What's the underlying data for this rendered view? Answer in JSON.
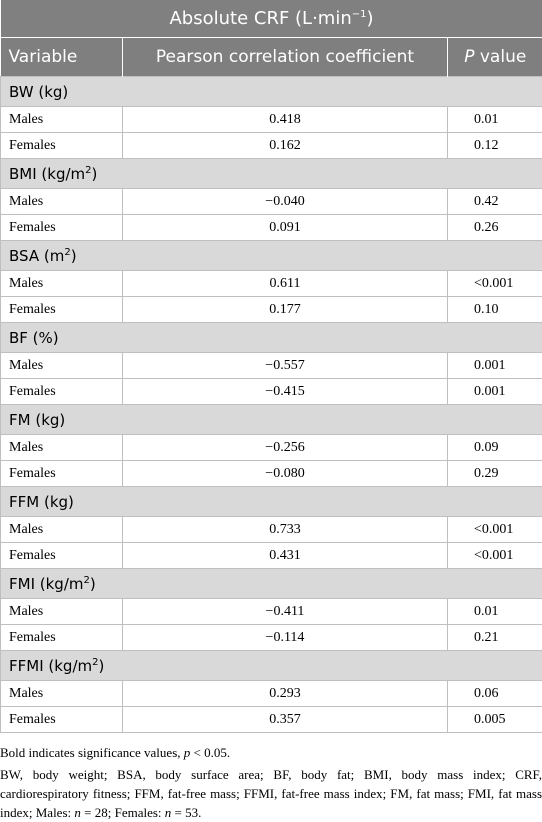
{
  "table": {
    "title": {
      "text": "Absolute CRF (L·min",
      "sup": "−1",
      "tail": ")"
    },
    "headers": [
      {
        "text": "Variable"
      },
      {
        "text": "Pearson correlation coefficient"
      },
      {
        "italic": "P",
        "text": " value"
      }
    ],
    "groups": [
      {
        "label": "BW (kg)",
        "rows": [
          {
            "variable": "Males",
            "r": "0.418",
            "p": "0.01",
            "bold": true
          },
          {
            "variable": "Females",
            "r": "0.162",
            "p": "0.12",
            "bold": false
          }
        ]
      },
      {
        "label": "BMI (kg/m",
        "sup": "2",
        "tail": ")",
        "rows": [
          {
            "variable": "Males",
            "r": "−0.040",
            "p": "0.42",
            "bold": false
          },
          {
            "variable": "Females",
            "r": "0.091",
            "p": "0.26",
            "bold": false
          }
        ]
      },
      {
        "label": "BSA (m",
        "sup": "2",
        "tail": ")",
        "rows": [
          {
            "variable": "Males",
            "r": "0.611",
            "p": "<0.001",
            "bold": true
          },
          {
            "variable": "Females",
            "r": "0.177",
            "p": "0.10",
            "bold": false
          }
        ]
      },
      {
        "label": "BF (%)",
        "rows": [
          {
            "variable": "Males",
            "r": "−0.557",
            "p": "0.001",
            "bold": true
          },
          {
            "variable": "Females",
            "r": "−0.415",
            "p": "0.001",
            "bold": true
          }
        ]
      },
      {
        "label": "FM (kg)",
        "rows": [
          {
            "variable": "Males",
            "r": "−0.256",
            "p": "0.09",
            "bold": false
          },
          {
            "variable": "Females",
            "r": "−0.080",
            "p": "0.29",
            "bold": false
          }
        ]
      },
      {
        "label": "FFM (kg)",
        "rows": [
          {
            "variable": "Males",
            "r": "0.733",
            "p": "<0.001",
            "bold": true
          },
          {
            "variable": "Females",
            "r": "0.431",
            "p": "<0.001",
            "bold": true
          }
        ]
      },
      {
        "label": "FMI (kg/m",
        "sup": "2",
        "tail": ")",
        "rows": [
          {
            "variable": "Males",
            "r": "−0.411",
            "p": "0.01",
            "bold": true
          },
          {
            "variable": "Females",
            "r": "−0.114",
            "p": "0.21",
            "bold": false
          }
        ]
      },
      {
        "label": "FFMI (kg/m",
        "sup": "2",
        "tail": ")",
        "rows": [
          {
            "variable": "Males",
            "r": "0.293",
            "p": "0.06",
            "bold": false
          },
          {
            "variable": "Females",
            "r": "0.357",
            "p": "0.005",
            "bold": true
          }
        ]
      }
    ],
    "notes": [
      [
        {
          "text": "Bold indicates significance values, "
        },
        {
          "text": "p",
          "italic": true
        },
        {
          "text": " < 0.05."
        }
      ],
      [
        {
          "text": "BW, body weight; BSA, body surface area; BF, body fat; BMI, body mass index; CRF, cardiorespiratory fitness; FFM, fat-free mass; FFMI, fat-free mass index; FM, fat mass; FMI, fat mass index; Males: "
        },
        {
          "text": "n",
          "italic": true
        },
        {
          "text": " = 28; Females: "
        },
        {
          "text": "n",
          "italic": true
        },
        {
          "text": " = 53."
        }
      ]
    ]
  }
}
